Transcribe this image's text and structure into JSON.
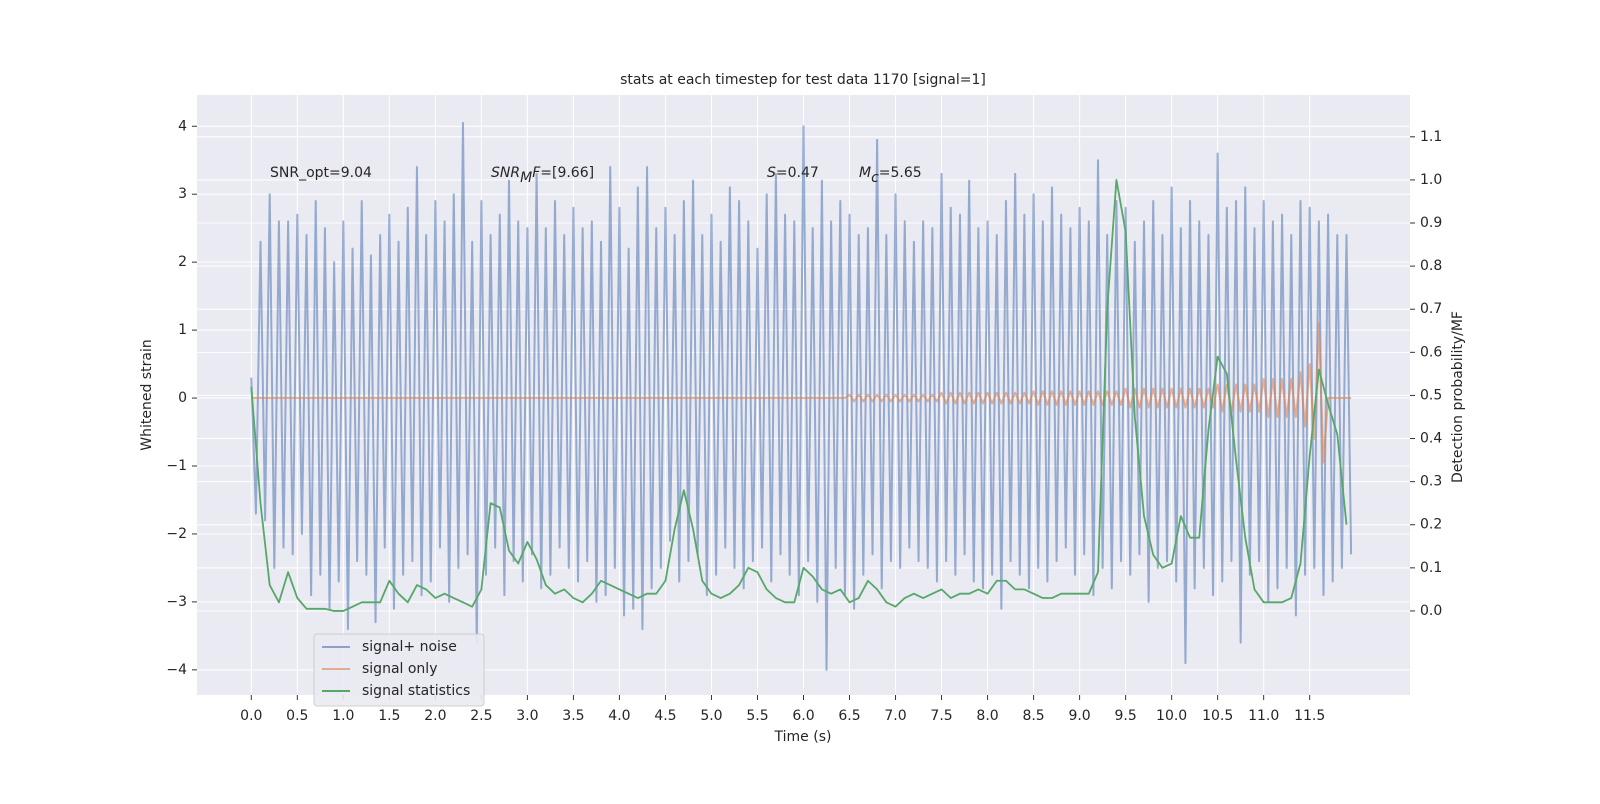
{
  "chart_data": {
    "type": "line",
    "title": "stats at each timestep for test data 1170 [signal=1]",
    "xlabel": "Time (s)",
    "ylabel": "Whitened strain",
    "y2label": "Detection probability/MF",
    "annotations": [
      [
        "SNR_opt=9.04"
      ],
      [
        "SNR",
        "M",
        "F",
        "=[9.66]"
      ],
      [
        "S",
        "=0.47"
      ],
      [
        "M",
        "c",
        "=5.65"
      ]
    ],
    "grid": true,
    "legend": "lower left",
    "xlim": [
      -0.59,
      12.59
    ],
    "ylim": [
      -4.37,
      4.46
    ],
    "y2lim": [
      -0.195,
      1.197
    ],
    "xticks": [
      {
        "value": 0,
        "label": "0.0"
      },
      0.5,
      {
        "value": 1,
        "label": "1.0"
      },
      1.5,
      {
        "value": 2,
        "label": "2.0"
      },
      2.5,
      {
        "value": 3,
        "label": "3.0"
      },
      3.5,
      {
        "value": 4,
        "label": "4.0"
      },
      4.5,
      {
        "value": 5,
        "label": "5.0"
      },
      5.5,
      {
        "value": 6,
        "label": "6.0"
      },
      6.5,
      {
        "value": 7,
        "label": "7.0"
      },
      7.5,
      {
        "value": 8,
        "label": "8.0"
      },
      8.5,
      {
        "value": 9,
        "label": "9.0"
      },
      9.5,
      {
        "value": 10,
        "label": "10.0"
      },
      10.5,
      {
        "value": 11,
        "label": "11.0"
      },
      11.5
    ],
    "yticks": [
      {
        "value": -4,
        "label": "−4"
      },
      {
        "value": -3,
        "label": "−3"
      },
      {
        "value": -2,
        "label": "−2"
      },
      {
        "value": -1,
        "label": "−1"
      },
      0,
      1,
      2,
      3,
      4
    ],
    "y2ticks": [
      {
        "value": 0,
        "label": "0.0"
      },
      0.1,
      0.2,
      0.3,
      0.4,
      0.5,
      0.6,
      0.7,
      0.8,
      0.9,
      {
        "value": 1,
        "label": "1.0"
      },
      1.1
    ],
    "x": [
      0,
      0.05,
      0.1,
      0.15,
      0.2,
      0.25,
      0.3,
      0.35,
      0.4,
      0.45,
      0.5,
      0.55,
      0.6,
      0.65,
      0.7,
      0.75,
      0.8,
      0.85,
      0.9,
      0.95,
      1,
      1.05,
      1.1,
      1.15,
      1.2,
      1.25,
      1.3,
      1.35,
      1.4,
      1.45,
      1.5,
      1.55,
      1.6,
      1.65,
      1.7,
      1.75,
      1.8,
      1.85,
      1.9,
      1.95,
      2,
      2.05,
      2.1,
      2.15,
      2.2,
      2.25,
      2.3,
      2.35,
      2.4,
      2.45,
      2.5,
      2.55,
      2.6,
      2.65,
      2.7,
      2.75,
      2.8,
      2.85,
      2.9,
      2.95,
      3,
      3.05,
      3.1,
      3.15,
      3.2,
      3.25,
      3.3,
      3.35,
      3.4,
      3.45,
      3.5,
      3.55,
      3.6,
      3.65,
      3.7,
      3.75,
      3.8,
      3.85,
      3.9,
      3.95,
      4,
      4.05,
      4.1,
      4.15,
      4.2,
      4.25,
      4.3,
      4.35,
      4.4,
      4.45,
      4.5,
      4.55,
      4.6,
      4.65,
      4.7,
      4.75,
      4.8,
      4.85,
      4.9,
      4.95,
      5,
      5.05,
      5.1,
      5.15,
      5.2,
      5.25,
      5.3,
      5.35,
      5.4,
      5.45,
      5.5,
      5.55,
      5.6,
      5.65,
      5.7,
      5.75,
      5.8,
      5.85,
      5.9,
      5.95,
      6,
      6.05,
      6.1,
      6.15,
      6.2,
      6.25,
      6.3,
      6.35,
      6.4,
      6.45,
      6.5,
      6.55,
      6.6,
      6.65,
      6.7,
      6.75,
      6.8,
      6.85,
      6.9,
      6.95,
      7,
      7.05,
      7.1,
      7.15,
      7.2,
      7.25,
      7.3,
      7.35,
      7.4,
      7.45,
      7.5,
      7.55,
      7.6,
      7.65,
      7.7,
      7.75,
      7.8,
      7.85,
      7.9,
      7.95,
      8,
      8.05,
      8.1,
      8.15,
      8.2,
      8.25,
      8.3,
      8.35,
      8.4,
      8.45,
      8.5,
      8.55,
      8.6,
      8.65,
      8.7,
      8.75,
      8.8,
      8.85,
      8.9,
      8.95,
      9,
      9.05,
      9.1,
      9.15,
      9.2,
      9.25,
      9.3,
      9.35,
      9.4,
      9.45,
      9.5,
      9.55,
      9.6,
      9.65,
      9.7,
      9.75,
      9.8,
      9.85,
      9.9,
      9.95,
      10,
      10.05,
      10.1,
      10.15,
      10.2,
      10.25,
      10.3,
      10.35,
      10.4,
      10.45,
      10.5,
      10.55,
      10.6,
      10.65,
      10.7,
      10.75,
      10.8,
      10.85,
      10.9,
      10.95,
      11,
      11.05,
      11.1,
      11.15,
      11.2,
      11.25,
      11.3,
      11.35,
      11.4,
      11.45,
      11.5,
      11.55,
      11.6,
      11.65,
      11.7,
      11.75,
      11.8,
      11.85,
      11.9,
      11.95
    ],
    "series": [
      {
        "name": "signal+ noise",
        "color": "#4c72b0",
        "values": [
          0.3,
          -1.7,
          2.3,
          -1.8,
          3.0,
          -2.5,
          2.6,
          -2.2,
          2.6,
          -2.3,
          2.7,
          -2.0,
          2.4,
          -2.9,
          2.9,
          -2.6,
          2.5,
          -3.1,
          2.0,
          -2.7,
          2.6,
          -3.4,
          2.2,
          -2.4,
          2.9,
          -2.6,
          2.1,
          -3.3,
          2.4,
          -2.2,
          2.7,
          -3.1,
          2.3,
          -2.6,
          2.8,
          -2.4,
          3.4,
          -2.9,
          2.4,
          -2.7,
          2.9,
          -2.2,
          2.6,
          -3.0,
          3.0,
          -2.5,
          4.05,
          -2.3,
          2.3,
          -3.6,
          2.9,
          -2.6,
          2.4,
          -2.2,
          2.7,
          -2.9,
          3.2,
          -2.4,
          2.6,
          -2.7,
          2.5,
          -2.3,
          3.3,
          -2.8,
          2.5,
          -2.6,
          2.9,
          -2.2,
          2.4,
          -2.5,
          2.8,
          -2.7,
          2.5,
          -2.4,
          2.6,
          -3.0,
          2.3,
          -2.9,
          3.4,
          -2.5,
          2.8,
          -3.2,
          2.2,
          -3.1,
          3.1,
          -3.4,
          3.4,
          -2.8,
          2.5,
          -2.5,
          2.8,
          -2.1,
          2.4,
          -2.7,
          2.9,
          -2.4,
          3.2,
          -2.3,
          2.4,
          -2.9,
          2.7,
          -2.6,
          2.3,
          -2.2,
          3.1,
          -2.5,
          2.9,
          -2.8,
          2.6,
          -2.4,
          2.2,
          -2.2,
          3.0,
          -2.7,
          3.3,
          -2.3,
          2.7,
          -2.6,
          2.6,
          -2.9,
          4.0,
          -2.4,
          2.5,
          -3.0,
          3.2,
          -4.0,
          2.6,
          -2.5,
          2.9,
          -2.9,
          2.7,
          -3.1,
          2.4,
          -2.6,
          2.5,
          -2.3,
          3.8,
          -2.8,
          2.4,
          -2.4,
          3.0,
          -2.5,
          2.6,
          -2.2,
          2.3,
          -2.4,
          2.6,
          -2.5,
          2.5,
          -2.7,
          3.3,
          -2.4,
          2.8,
          -2.6,
          2.7,
          -2.3,
          3.2,
          -2.7,
          2.5,
          -2.8,
          2.6,
          -2.6,
          2.4,
          -3.1,
          2.9,
          -2.4,
          3.3,
          -2.6,
          2.7,
          -2.8,
          3.0,
          -2.5,
          2.6,
          -2.7,
          3.1,
          -2.4,
          2.7,
          -2.2,
          2.5,
          -2.6,
          2.8,
          -2.3,
          2.6,
          -2.9,
          3.5,
          -2.5,
          2.4,
          -2.8,
          2.9,
          -2.4,
          2.8,
          -2.6,
          2.3,
          -2.3,
          2.6,
          -3.0,
          2.9,
          -2.5,
          2.4,
          -2.4,
          3.1,
          -2.7,
          2.5,
          -3.9,
          2.9,
          -2.8,
          2.6,
          -2.5,
          2.4,
          -2.9,
          3.6,
          -2.7,
          2.8,
          -2.4,
          2.9,
          -3.6,
          3.1,
          -2.6,
          2.5,
          -2.4,
          2.9,
          -3.0,
          2.6,
          -2.8,
          2.7,
          -2.5,
          2.4,
          -3.2,
          2.9,
          -2.6,
          2.8,
          -2.5,
          2.6,
          -2.9,
          2.7,
          -2.7,
          2.4,
          -2.5,
          2.4,
          -2.3
        ]
      },
      {
        "name": "signal only",
        "color": "#dd8452",
        "values": [
          0,
          0,
          0,
          0,
          0,
          0,
          0,
          0,
          0,
          0,
          0,
          0,
          0,
          0,
          0,
          0,
          0,
          0,
          0,
          0,
          0,
          0,
          0,
          0,
          0,
          0,
          0,
          0,
          0,
          0,
          0,
          0,
          0,
          0,
          0,
          0,
          0,
          0,
          0,
          0,
          0,
          0,
          0,
          0,
          0,
          0,
          0,
          0,
          0,
          0,
          0,
          0,
          0,
          0,
          0,
          0,
          0,
          0,
          0,
          0,
          0,
          0,
          0,
          0,
          0,
          0,
          0,
          0,
          0,
          0,
          0,
          0,
          0,
          0,
          0,
          0,
          0,
          0,
          0,
          0,
          0,
          0,
          0,
          0,
          0,
          0,
          0,
          0,
          0,
          0,
          0,
          0,
          0,
          0,
          0,
          0,
          0,
          0,
          0,
          0,
          0,
          0,
          0,
          0,
          0,
          0,
          0,
          0,
          0,
          0,
          0,
          0,
          0,
          0,
          0,
          0,
          0,
          0,
          0,
          0,
          0,
          0,
          0,
          0,
          0,
          0,
          0,
          0,
          0,
          0,
          0.05,
          -0.05,
          0.05,
          -0.05,
          0.05,
          -0.05,
          0.05,
          -0.05,
          0.05,
          -0.05,
          0.05,
          -0.05,
          0.05,
          -0.05,
          0.05,
          -0.05,
          0.05,
          -0.05,
          0.05,
          -0.05,
          0.08,
          -0.08,
          0.08,
          -0.08,
          0.08,
          -0.08,
          0.08,
          -0.08,
          0.08,
          -0.08,
          0.08,
          -0.08,
          0.08,
          -0.08,
          0.08,
          -0.08,
          0.08,
          -0.08,
          0.08,
          -0.08,
          0.1,
          -0.1,
          0.1,
          -0.1,
          0.1,
          -0.1,
          0.1,
          -0.1,
          0.1,
          -0.1,
          0.1,
          -0.1,
          0.1,
          -0.1,
          0.1,
          -0.1,
          0.1,
          -0.1,
          0.1,
          -0.1,
          0.14,
          -0.14,
          0.14,
          -0.14,
          0.14,
          -0.14,
          0.14,
          -0.14,
          0.14,
          -0.14,
          0.14,
          -0.14,
          0.14,
          -0.14,
          0.14,
          -0.14,
          0.14,
          -0.14,
          0.14,
          -0.14,
          0.2,
          -0.2,
          0.2,
          -0.2,
          0.2,
          -0.2,
          0.2,
          -0.2,
          0.2,
          -0.2,
          0.28,
          -0.28,
          0.28,
          -0.28,
          0.28,
          -0.28,
          0.28,
          -0.28,
          0.38,
          -0.42,
          0.5,
          -0.6,
          1.1,
          -0.95,
          0,
          0,
          0,
          0,
          0,
          0
        ]
      },
      {
        "name": "signal statistics",
        "color": "#55a868",
        "axis": "y2",
        "x": [
          0,
          0.1,
          0.2,
          0.3,
          0.4,
          0.5,
          0.6,
          0.7,
          0.8,
          0.9,
          1,
          1.1,
          1.2,
          1.3,
          1.4,
          1.5,
          1.6,
          1.7,
          1.8,
          1.9,
          2,
          2.1,
          2.2,
          2.3,
          2.4,
          2.5,
          2.6,
          2.7,
          2.8,
          2.9,
          3,
          3.1,
          3.2,
          3.3,
          3.4,
          3.5,
          3.6,
          3.7,
          3.8,
          3.9,
          4,
          4.1,
          4.2,
          4.3,
          4.4,
          4.5,
          4.6,
          4.7,
          4.8,
          4.9,
          5,
          5.1,
          5.2,
          5.3,
          5.4,
          5.5,
          5.6,
          5.7,
          5.8,
          5.9,
          6,
          6.1,
          6.2,
          6.3,
          6.4,
          6.5,
          6.6,
          6.7,
          6.8,
          6.9,
          7,
          7.1,
          7.2,
          7.3,
          7.4,
          7.5,
          7.6,
          7.7,
          7.8,
          7.9,
          8,
          8.1,
          8.2,
          8.3,
          8.4,
          8.5,
          8.6,
          8.7,
          8.8,
          8.9,
          9,
          9.1,
          9.2,
          9.3,
          9.4,
          9.5,
          9.6,
          9.7,
          9.8,
          9.9,
          10,
          10.1,
          10.2,
          10.3,
          10.4,
          10.5,
          10.6,
          10.7,
          10.8,
          10.9,
          11,
          11.1,
          11.2,
          11.3,
          11.4,
          11.5,
          11.6,
          11.7,
          11.8,
          11.9
        ],
        "values": [
          0.52,
          0.25,
          0.06,
          0.02,
          0.09,
          0.03,
          0.005,
          0.005,
          0.005,
          0,
          0,
          0.01,
          0.02,
          0.02,
          0.02,
          0.07,
          0.04,
          0.02,
          0.06,
          0.05,
          0.03,
          0.04,
          0.03,
          0.02,
          0.01,
          0.05,
          0.25,
          0.24,
          0.14,
          0.11,
          0.16,
          0.12,
          0.06,
          0.04,
          0.05,
          0.03,
          0.02,
          0.04,
          0.07,
          0.06,
          0.05,
          0.04,
          0.03,
          0.04,
          0.04,
          0.07,
          0.19,
          0.28,
          0.19,
          0.07,
          0.04,
          0.03,
          0.04,
          0.06,
          0.1,
          0.09,
          0.05,
          0.03,
          0.02,
          0.02,
          0.1,
          0.08,
          0.05,
          0.04,
          0.05,
          0.02,
          0.03,
          0.07,
          0.05,
          0.02,
          0.01,
          0.03,
          0.04,
          0.03,
          0.04,
          0.05,
          0.03,
          0.04,
          0.04,
          0.05,
          0.04,
          0.07,
          0.07,
          0.05,
          0.05,
          0.04,
          0.03,
          0.03,
          0.04,
          0.04,
          0.04,
          0.04,
          0.09,
          0.7,
          1.0,
          0.88,
          0.45,
          0.22,
          0.13,
          0.1,
          0.11,
          0.22,
          0.17,
          0.17,
          0.42,
          0.59,
          0.55,
          0.35,
          0.17,
          0.05,
          0.02,
          0.02,
          0.02,
          0.03,
          0.11,
          0.36,
          0.56,
          0.48,
          0.41,
          0.2
        ]
      }
    ]
  }
}
